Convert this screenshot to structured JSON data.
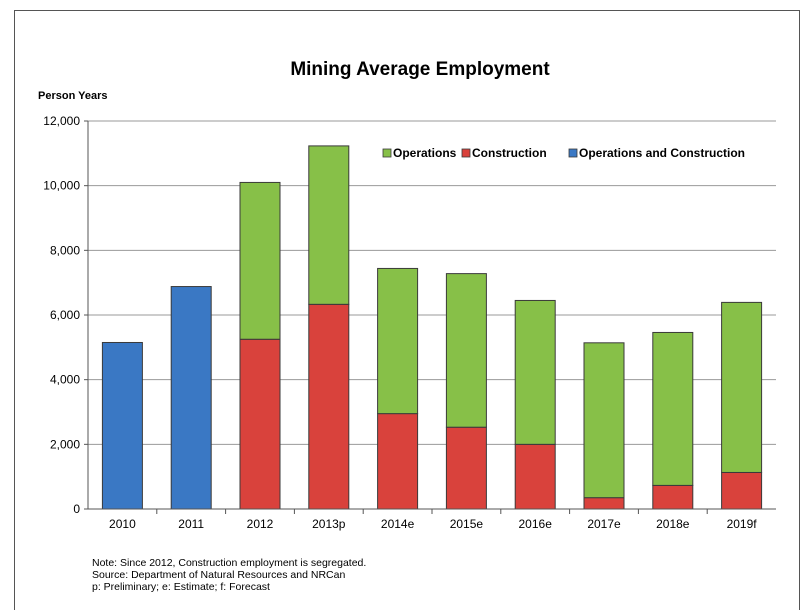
{
  "chart_data": {
    "type": "bar",
    "stacked": true,
    "title": "Mining Average Employment",
    "ylabel": "Person Years",
    "xlabel": "",
    "ylim": [
      0,
      12000
    ],
    "yticks": [
      0,
      2000,
      4000,
      6000,
      8000,
      10000,
      12000
    ],
    "ytick_labels": [
      "0",
      "2,000",
      "4,000",
      "6,000",
      "8,000",
      "10,000",
      "12,000"
    ],
    "grid": true,
    "legend_position": "top-right",
    "categories": [
      "2010",
      "2011",
      "2012",
      "2013p",
      "2014e",
      "2015e",
      "2016e",
      "2017e",
      "2018e",
      "2019f"
    ],
    "series": [
      {
        "name": "Operations and Construction",
        "color": "#3a78c4",
        "values": [
          5150,
          6880,
          0,
          0,
          0,
          0,
          0,
          0,
          0,
          0
        ]
      },
      {
        "name": "Construction",
        "color": "#d9423c",
        "values": [
          0,
          0,
          5250,
          6330,
          2950,
          2530,
          2000,
          350,
          730,
          1130
        ]
      },
      {
        "name": "Operations",
        "color": "#87c048",
        "values": [
          0,
          0,
          4850,
          4900,
          4490,
          4750,
          4450,
          4790,
          4730,
          5260
        ]
      }
    ],
    "legend_order": [
      "Operations",
      "Construction",
      "Operations and Construction"
    ]
  },
  "notes": [
    "Note: Since 2012, Construction employment is segregated.",
    "Source: Department of Natural Resources and NRCan",
    "p: Preliminary; e: Estimate; f: Forecast"
  ]
}
